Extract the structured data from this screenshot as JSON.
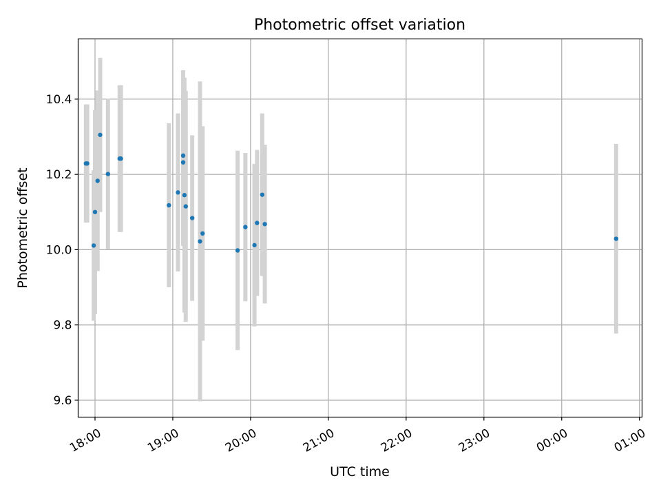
{
  "chart_data": {
    "type": "scatter",
    "title": "Photometric offset variation",
    "xlabel": "UTC time",
    "ylabel": "Photometric offset",
    "x_axis": "time",
    "xlim": [
      "17:47",
      "01:02"
    ],
    "ylim": [
      9.555,
      10.56
    ],
    "x_ticks": [
      "18:00",
      "19:00",
      "20:00",
      "21:00",
      "22:00",
      "23:00",
      "00:00",
      "01:00"
    ],
    "y_ticks": [
      "9.6",
      "9.8",
      "10.0",
      "10.2",
      "10.4"
    ],
    "grid": true,
    "marker_color": "#1f77b4",
    "errorbar_color": "#d3d3d3",
    "points": [
      {
        "t": "17:53",
        "y": 10.229,
        "err": 0.157
      },
      {
        "t": "17:54",
        "y": 10.229,
        "err": 0.157
      },
      {
        "t": "17:59",
        "y": 10.011,
        "err": 0.2
      },
      {
        "t": "18:00",
        "y": 10.1,
        "err": 0.271
      },
      {
        "t": "18:02",
        "y": 10.183,
        "err": 0.24
      },
      {
        "t": "18:04",
        "y": 10.305,
        "err": 0.205
      },
      {
        "t": "18:10",
        "y": 10.201,
        "err": 0.2
      },
      {
        "t": "18:19",
        "y": 10.242,
        "err": 0.195
      },
      {
        "t": "18:20",
        "y": 10.242,
        "err": 0.195
      },
      {
        "t": "18:57",
        "y": 10.118,
        "err": 0.218
      },
      {
        "t": "19:04",
        "y": 10.152,
        "err": 0.21
      },
      {
        "t": "19:08",
        "y": 10.25,
        "err": 0.227
      },
      {
        "t": "19:08",
        "y": 10.232,
        "err": 0.222
      },
      {
        "t": "19:09",
        "y": 10.145,
        "err": 0.312
      },
      {
        "t": "19:10",
        "y": 10.115,
        "err": 0.307
      },
      {
        "t": "19:15",
        "y": 10.084,
        "err": 0.22
      },
      {
        "t": "19:21",
        "y": 10.022,
        "err": 0.425
      },
      {
        "t": "19:23",
        "y": 10.043,
        "err": 0.285
      },
      {
        "t": "19:50",
        "y": 9.998,
        "err": 0.265
      },
      {
        "t": "19:56",
        "y": 10.06,
        "err": 0.197
      },
      {
        "t": "20:03",
        "y": 10.012,
        "err": 0.216
      },
      {
        "t": "20:05",
        "y": 10.071,
        "err": 0.194
      },
      {
        "t": "20:09",
        "y": 10.146,
        "err": 0.216
      },
      {
        "t": "20:11",
        "y": 10.068,
        "err": 0.211
      },
      {
        "t": "00:42",
        "y": 10.029,
        "err": 0.252
      }
    ]
  }
}
